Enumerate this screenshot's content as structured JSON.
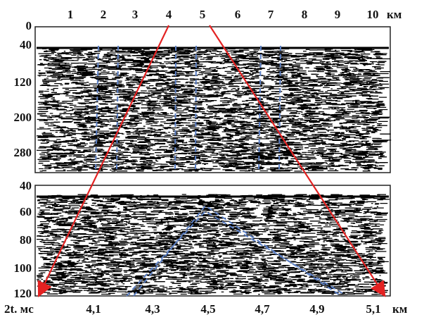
{
  "top_panel": {
    "x_ticks": [
      "1",
      "2",
      "3",
      "4",
      "5",
      "6",
      "7",
      "8",
      "9",
      "10"
    ],
    "x_unit": "км",
    "y_ticks": [
      "0",
      "40",
      "120",
      "200",
      "280"
    ]
  },
  "bottom_panel": {
    "x_ticks": [
      "4,1",
      "4,3",
      "4,5",
      "4,7",
      "4,9",
      "5,1"
    ],
    "x_unit": "км",
    "y_ticks": [
      "40",
      "60",
      "80",
      "100",
      "120"
    ],
    "y_unit": "2t. мс"
  }
}
